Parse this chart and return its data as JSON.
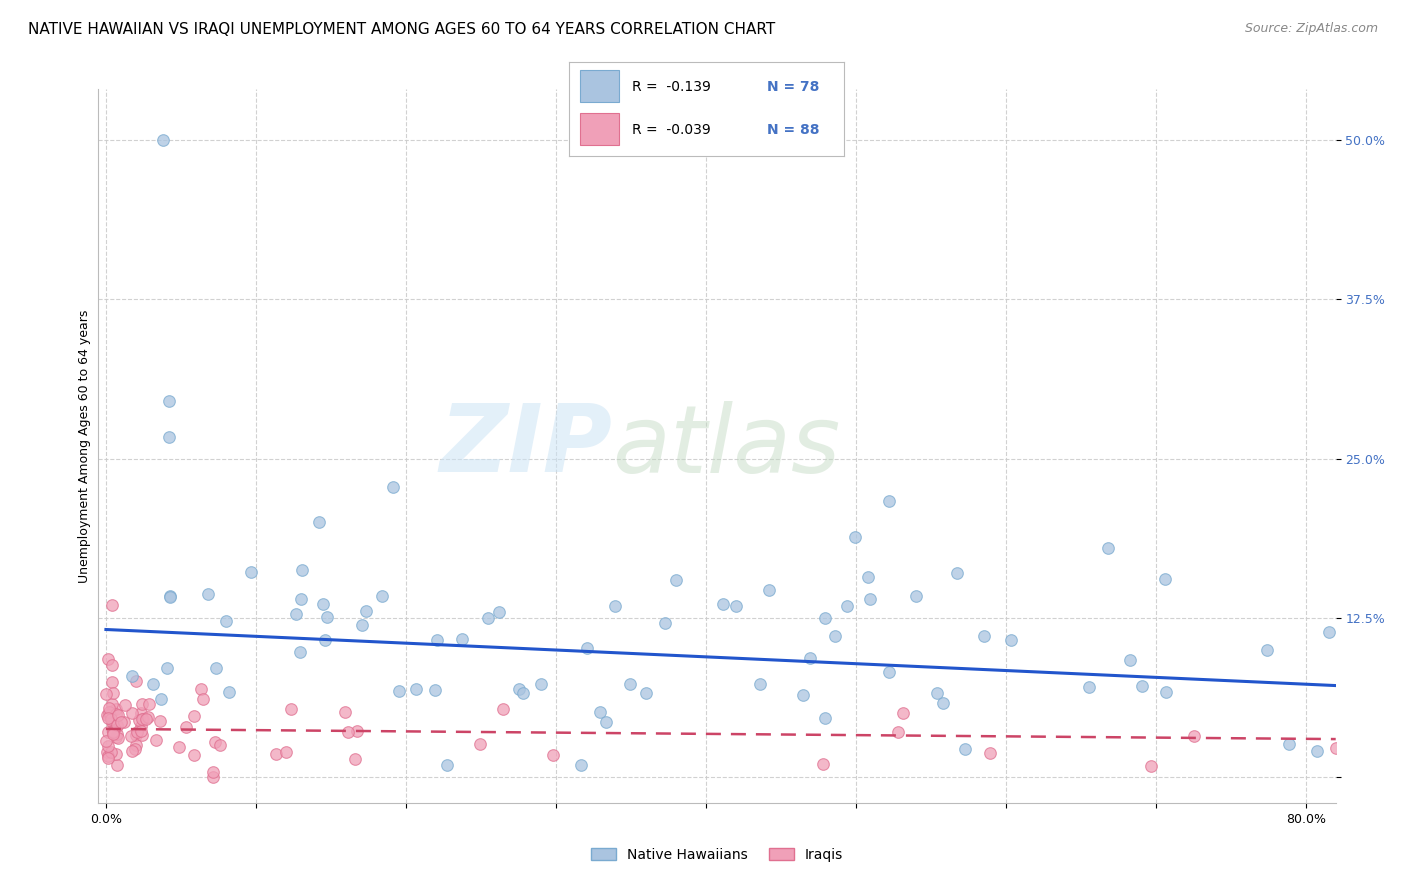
{
  "title": "NATIVE HAWAIIAN VS IRAQI UNEMPLOYMENT AMONG AGES 60 TO 64 YEARS CORRELATION CHART",
  "source": "Source: ZipAtlas.com",
  "ylabel_axis_label": "Unemployment Among Ages 60 to 64 years",
  "legend_label1": "Native Hawaiians",
  "legend_label2": "Iraqis",
  "legend_R1": "R =  -0.139",
  "legend_N1": "N = 78",
  "legend_R2": "R =  -0.039",
  "legend_N2": "N = 88",
  "scatter_color1": "#aac4e0",
  "scatter_edge1": "#7aaad0",
  "scatter_color2": "#f0a0b8",
  "scatter_edge2": "#e07090",
  "line_color1": "#2255cc",
  "line_color2": "#cc4466",
  "background_color": "#ffffff",
  "grid_color": "#cccccc",
  "tick_color": "#4472c4",
  "xlim": [
    -0.005,
    0.82
  ],
  "ylim": [
    -0.02,
    0.54
  ],
  "nh_line_x0": 0.0,
  "nh_line_y0": 0.116,
  "nh_line_x1": 0.82,
  "nh_line_y1": 0.072,
  "iq_line_x0": 0.0,
  "iq_line_y0": 0.038,
  "iq_line_x1": 0.82,
  "iq_line_y1": 0.03,
  "title_fontsize": 11,
  "axis_label_fontsize": 9,
  "tick_fontsize": 9,
  "legend_fontsize": 10,
  "source_fontsize": 9
}
